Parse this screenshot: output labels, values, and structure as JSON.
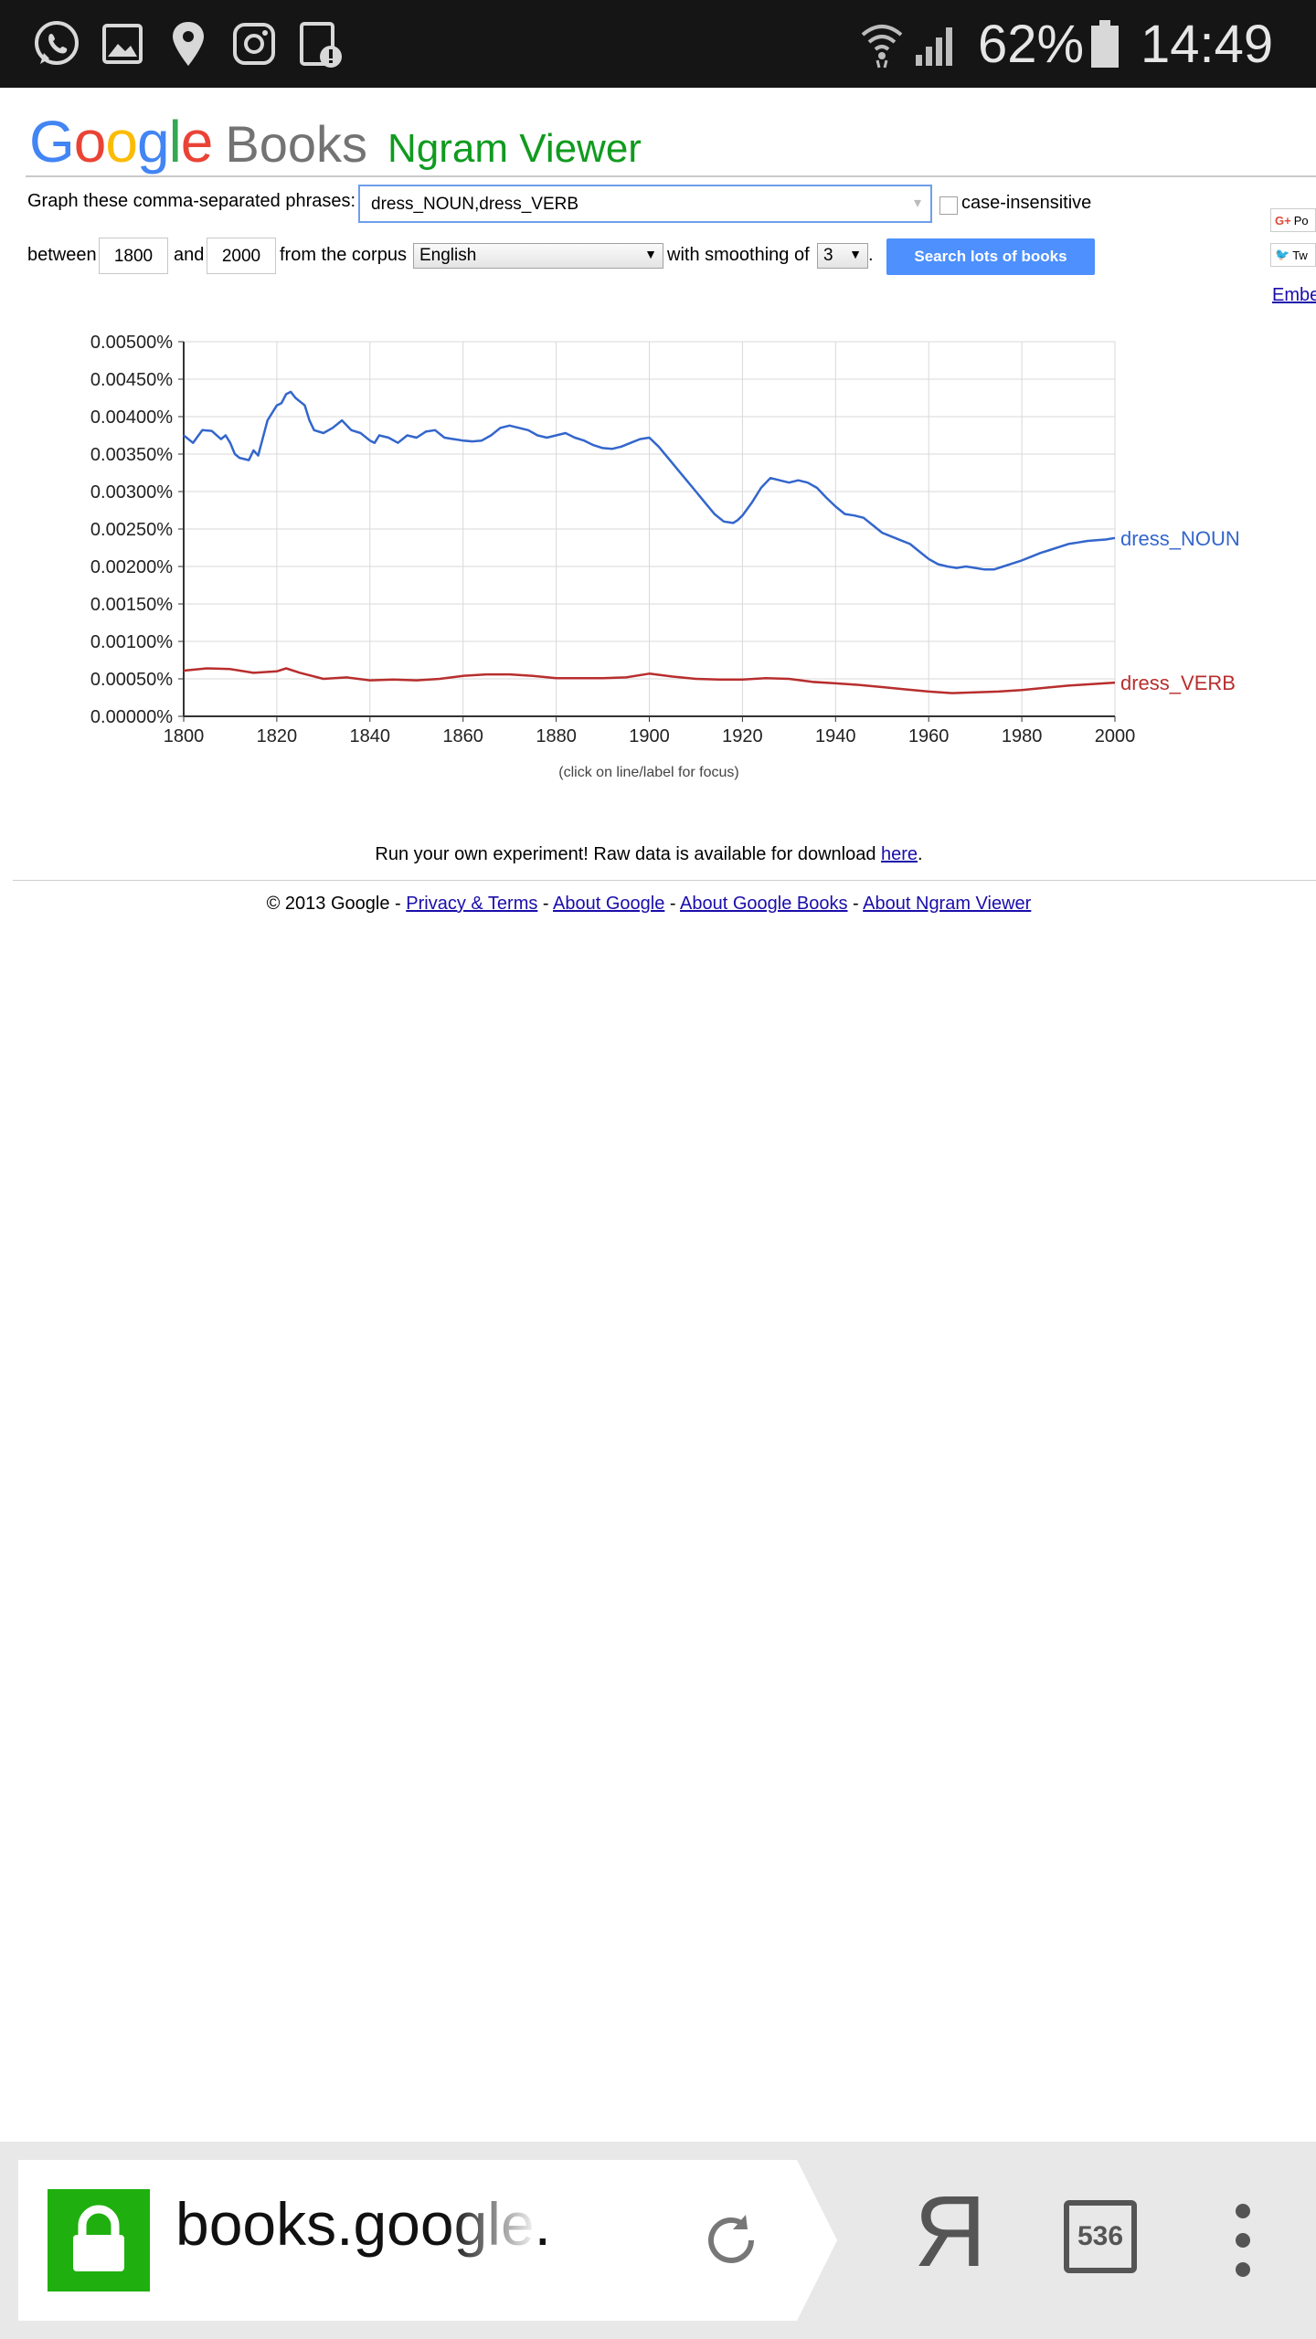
{
  "status_bar": {
    "left_icons": [
      "whatsapp-icon",
      "gallery-icon",
      "location-pin-icon",
      "instagram-icon",
      "device-alert-icon"
    ],
    "battery_percent": "62%",
    "time": "14:49"
  },
  "header": {
    "logo_google": "Google",
    "logo_books": "Books",
    "title": "Ngram Viewer",
    "brand_colors": [
      "#4285f4",
      "#ea4335",
      "#fbbc05",
      "#4285f4",
      "#34a853",
      "#ea4335"
    ]
  },
  "form": {
    "phrases_label": "Graph these comma-separated phrases:",
    "phrases_value": "dress_NOUN,dress_VERB",
    "case_insensitive_label": "case-insensitive",
    "between_label": "between",
    "start_year": "1800",
    "and_label": "and",
    "end_year": "2000",
    "corpus_label": "from the corpus",
    "corpus_value": "English",
    "smoothing_label": "with smoothing of",
    "smoothing_value": "3",
    "period": ".",
    "search_button": "Search lots of books",
    "share_google_plus": "Po",
    "share_twitter": "Tw",
    "embed_link": "Embe"
  },
  "chart_data": {
    "type": "line",
    "xlim": [
      1800,
      2000
    ],
    "ylim": [
      0,
      0.005
    ],
    "x_ticks": [
      "1800",
      "1820",
      "1840",
      "1860",
      "1880",
      "1900",
      "1920",
      "1940",
      "1960",
      "1980",
      "2000"
    ],
    "y_ticks": [
      "0.00000%",
      "0.00050%",
      "0.00100%",
      "0.00150%",
      "0.00200%",
      "0.00250%",
      "0.00300%",
      "0.00350%",
      "0.00400%",
      "0.00450%",
      "0.00500%"
    ],
    "grid": true,
    "note": "(click on line/label for focus)",
    "series": [
      {
        "name": "dress_NOUN",
        "color": "#3366cc",
        "x": [
          1800,
          1802,
          1804,
          1806,
          1808,
          1809,
          1810,
          1811,
          1812,
          1814,
          1815,
          1816,
          1818,
          1820,
          1821,
          1822,
          1823,
          1824,
          1826,
          1827,
          1828,
          1830,
          1832,
          1834,
          1836,
          1838,
          1840,
          1841,
          1842,
          1844,
          1846,
          1848,
          1850,
          1852,
          1854,
          1856,
          1858,
          1860,
          1862,
          1864,
          1866,
          1868,
          1870,
          1872,
          1874,
          1876,
          1878,
          1880,
          1882,
          1884,
          1886,
          1888,
          1890,
          1892,
          1894,
          1896,
          1898,
          1900,
          1902,
          1904,
          1906,
          1908,
          1910,
          1912,
          1914,
          1916,
          1918,
          1919,
          1920,
          1922,
          1924,
          1926,
          1928,
          1930,
          1932,
          1934,
          1936,
          1938,
          1940,
          1942,
          1944,
          1946,
          1948,
          1950,
          1952,
          1954,
          1956,
          1958,
          1960,
          1962,
          1964,
          1966,
          1968,
          1970,
          1972,
          1974,
          1976,
          1978,
          1980,
          1982,
          1984,
          1986,
          1988,
          1990,
          1992,
          1994,
          1996,
          1998,
          2000
        ],
        "y": [
          0.00375,
          0.00365,
          0.00382,
          0.00381,
          0.0037,
          0.00375,
          0.00365,
          0.0035,
          0.00345,
          0.00342,
          0.00355,
          0.00348,
          0.00395,
          0.00415,
          0.00418,
          0.0043,
          0.00433,
          0.00425,
          0.00415,
          0.00395,
          0.00382,
          0.00378,
          0.00385,
          0.00395,
          0.00382,
          0.00378,
          0.00368,
          0.00365,
          0.00375,
          0.00372,
          0.00365,
          0.00375,
          0.00372,
          0.0038,
          0.00382,
          0.00372,
          0.0037,
          0.00368,
          0.00367,
          0.00368,
          0.00375,
          0.00385,
          0.00388,
          0.00385,
          0.00382,
          0.00375,
          0.00372,
          0.00375,
          0.00378,
          0.00372,
          0.00368,
          0.00362,
          0.00358,
          0.00357,
          0.0036,
          0.00365,
          0.0037,
          0.00372,
          0.0036,
          0.00345,
          0.0033,
          0.00315,
          0.003,
          0.00285,
          0.0027,
          0.0026,
          0.00258,
          0.00262,
          0.00268,
          0.00285,
          0.00305,
          0.00318,
          0.00315,
          0.00312,
          0.00315,
          0.00312,
          0.00305,
          0.00292,
          0.0028,
          0.0027,
          0.00268,
          0.00265,
          0.00255,
          0.00245,
          0.0024,
          0.00235,
          0.0023,
          0.0022,
          0.0021,
          0.00203,
          0.002,
          0.00198,
          0.002,
          0.00198,
          0.00196,
          0.00196,
          0.002,
          0.00204,
          0.00208,
          0.00213,
          0.00218,
          0.00222,
          0.00226,
          0.0023,
          0.00232,
          0.00234,
          0.00235,
          0.00236,
          0.00238
        ]
      },
      {
        "name": "dress_VERB",
        "color": "#b82e2e",
        "x": [
          1800,
          1805,
          1810,
          1815,
          1820,
          1822,
          1825,
          1830,
          1835,
          1840,
          1845,
          1850,
          1855,
          1860,
          1865,
          1870,
          1875,
          1880,
          1885,
          1890,
          1895,
          1900,
          1905,
          1910,
          1915,
          1920,
          1925,
          1930,
          1935,
          1940,
          1945,
          1950,
          1955,
          1960,
          1965,
          1970,
          1975,
          1980,
          1985,
          1990,
          1995,
          2000
        ],
        "y": [
          0.00061,
          0.00064,
          0.00063,
          0.00058,
          0.0006,
          0.00064,
          0.00058,
          0.0005,
          0.00052,
          0.00048,
          0.00049,
          0.00048,
          0.0005,
          0.00054,
          0.00056,
          0.00056,
          0.00054,
          0.00051,
          0.00051,
          0.00051,
          0.00052,
          0.00057,
          0.00053,
          0.0005,
          0.00049,
          0.00049,
          0.00051,
          0.0005,
          0.00046,
          0.00044,
          0.00042,
          0.00039,
          0.00036,
          0.00033,
          0.00031,
          0.00032,
          0.00033,
          0.00035,
          0.00038,
          0.00041,
          0.00043,
          0.00045
        ]
      }
    ]
  },
  "footer": {
    "run_text": "Run your own experiment! Raw data is available for download ",
    "here_link": "here",
    "run_period": ".",
    "copyright": "© 2013 Google - ",
    "privacy_link": "Privacy & Terms",
    "sep": " - ",
    "about_google_link": "About Google",
    "about_books_link": "About Google Books",
    "about_ngram_link": "About Ngram Viewer"
  },
  "browser_bar": {
    "url": "books.google.",
    "lock_icon_color": "#1fb00f",
    "yandex_label": "Я",
    "tab_count": "536"
  }
}
